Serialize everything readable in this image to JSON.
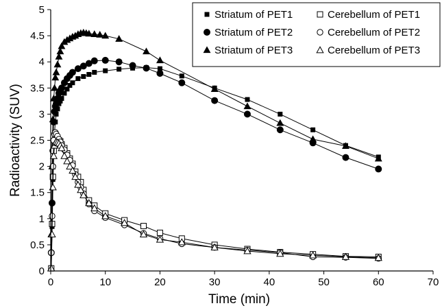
{
  "chart_data": {
    "type": "scatter",
    "title": "",
    "xlabel": "Time (min)",
    "ylabel": "Radioactivity (SUV)",
    "xlim": [
      0,
      70
    ],
    "ylim": [
      0,
      5
    ],
    "xticks": [
      "0",
      "10",
      "20",
      "30",
      "40",
      "50",
      "60",
      "70"
    ],
    "yticks": [
      "0",
      "0.5",
      "1",
      "1.5",
      "2",
      "2.5",
      "3",
      "3.5",
      "4",
      "4.5",
      "5"
    ],
    "grid": false,
    "legend": "top-right",
    "legend_columns": 2,
    "series": [
      {
        "name": "Striatum of PET1",
        "marker": "filled-square",
        "color": "#000000",
        "x": [
          0.1,
          0.25,
          0.4,
          0.55,
          0.7,
          0.85,
          1.0,
          1.25,
          1.5,
          1.75,
          2.0,
          2.5,
          3.0,
          3.5,
          4.0,
          5.0,
          6.0,
          7.0,
          8.0,
          10.0,
          12.5,
          15.0,
          17.5,
          20.0,
          24.0,
          30.0,
          36.0,
          42.0,
          48.0,
          54.0,
          60.0
        ],
        "y": [
          0.05,
          0.85,
          1.75,
          2.35,
          2.65,
          2.85,
          3.0,
          3.1,
          3.2,
          3.25,
          3.3,
          3.4,
          3.48,
          3.55,
          3.6,
          3.68,
          3.72,
          3.76,
          3.8,
          3.83,
          3.86,
          3.88,
          3.89,
          3.87,
          3.73,
          3.5,
          3.28,
          3.0,
          2.7,
          2.4,
          2.18
        ]
      },
      {
        "name": "Striatum of PET2",
        "marker": "filled-circle",
        "color": "#000000",
        "x": [
          0.1,
          0.25,
          0.4,
          0.55,
          0.7,
          0.85,
          1.0,
          1.25,
          1.5,
          1.75,
          2.0,
          2.5,
          3.0,
          3.5,
          4.0,
          5.0,
          6.0,
          7.0,
          8.0,
          10.0,
          12.5,
          15.0,
          17.5,
          20.0,
          24.0,
          30.0,
          36.0,
          42.0,
          48.0,
          54.0,
          60.0
        ],
        "y": [
          0.35,
          1.3,
          2.3,
          2.85,
          3.05,
          3.15,
          3.2,
          3.3,
          3.4,
          3.45,
          3.5,
          3.6,
          3.68,
          3.74,
          3.8,
          3.87,
          3.92,
          3.97,
          4.02,
          4.03,
          4.0,
          3.93,
          3.88,
          3.78,
          3.6,
          3.26,
          3.0,
          2.7,
          2.45,
          2.17,
          1.95
        ]
      },
      {
        "name": "Striatum of PET3",
        "marker": "filled-triangle",
        "color": "#000000",
        "x": [
          0.1,
          0.25,
          0.4,
          0.55,
          0.7,
          0.85,
          1.0,
          1.25,
          1.5,
          1.75,
          2.0,
          2.5,
          3.0,
          3.5,
          4.0,
          4.5,
          5.0,
          5.5,
          6.0,
          6.5,
          7.0,
          8.0,
          9.0,
          10.0,
          12.5,
          17.5,
          20.0,
          30.0,
          36.0,
          42.0,
          48.0,
          54.0,
          60.0
        ],
        "y": [
          0.7,
          2.0,
          2.9,
          3.3,
          3.5,
          3.7,
          3.8,
          3.95,
          4.1,
          4.2,
          4.3,
          4.38,
          4.42,
          4.45,
          4.48,
          4.5,
          4.53,
          4.55,
          4.56,
          4.55,
          4.54,
          4.53,
          4.52,
          4.5,
          4.44,
          4.2,
          4.03,
          3.48,
          3.15,
          2.83,
          2.52,
          2.39,
          2.15
        ]
      },
      {
        "name": "Cerebellum of PET1",
        "marker": "open-square",
        "color": "#000000",
        "x": [
          0.1,
          0.25,
          0.4,
          0.55,
          0.7,
          0.85,
          1.0,
          1.25,
          1.5,
          1.75,
          2.0,
          2.5,
          3.0,
          3.5,
          4.0,
          4.5,
          5.0,
          5.5,
          6.0,
          7.0,
          8.0,
          10.0,
          13.5,
          17.0,
          20.0,
          24.0,
          30.0,
          36.0,
          42.0,
          48.0,
          54.0,
          60.0
        ],
        "y": [
          0.05,
          0.9,
          1.8,
          2.3,
          2.4,
          2.45,
          2.5,
          2.52,
          2.5,
          2.48,
          2.42,
          2.35,
          2.25,
          2.15,
          2.05,
          1.9,
          1.8,
          1.7,
          1.55,
          1.35,
          1.25,
          1.1,
          0.97,
          0.86,
          0.73,
          0.62,
          0.5,
          0.42,
          0.36,
          0.32,
          0.28,
          0.27
        ]
      },
      {
        "name": "Cerebellum of PET2",
        "marker": "open-circle",
        "color": "#000000",
        "x": [
          0.1,
          0.25,
          0.4,
          0.55,
          0.7,
          0.85,
          1.0,
          1.25,
          1.5,
          1.75,
          2.0,
          2.5,
          3.0,
          3.5,
          4.0,
          4.5,
          5.0,
          5.5,
          6.0,
          7.0,
          8.0,
          10.0,
          13.5,
          17.0,
          20.0,
          24.0,
          30.0,
          36.0,
          42.0,
          48.0,
          54.0,
          60.0
        ],
        "y": [
          0.35,
          1.05,
          2.0,
          2.5,
          2.62,
          2.65,
          2.62,
          2.58,
          2.52,
          2.47,
          2.4,
          2.32,
          2.22,
          2.12,
          2.02,
          1.85,
          1.7,
          1.6,
          1.48,
          1.28,
          1.15,
          1.02,
          0.88,
          0.72,
          0.62,
          0.52,
          0.45,
          0.4,
          0.35,
          0.27,
          0.26,
          0.24
        ]
      },
      {
        "name": "Cerebellum of PET3",
        "marker": "open-triangle",
        "color": "#000000",
        "x": [
          0.1,
          0.25,
          0.4,
          0.55,
          0.7,
          0.85,
          1.0,
          1.25,
          1.5,
          1.75,
          2.0,
          2.5,
          3.0,
          3.5,
          4.0,
          4.5,
          5.0,
          5.5,
          6.0,
          7.0,
          8.0,
          10.0,
          13.5,
          17.0,
          20.0,
          24.0,
          30.0,
          36.0,
          42.0,
          48.0,
          54.0,
          60.0
        ],
        "y": [
          0.05,
          0.7,
          1.6,
          2.2,
          2.4,
          2.45,
          2.47,
          2.46,
          2.44,
          2.4,
          2.35,
          2.2,
          2.1,
          2.0,
          1.92,
          1.8,
          1.65,
          1.55,
          1.45,
          1.3,
          1.2,
          1.05,
          0.92,
          0.7,
          0.6,
          0.55,
          0.45,
          0.38,
          0.33,
          0.3,
          0.27,
          0.25
        ]
      }
    ]
  }
}
